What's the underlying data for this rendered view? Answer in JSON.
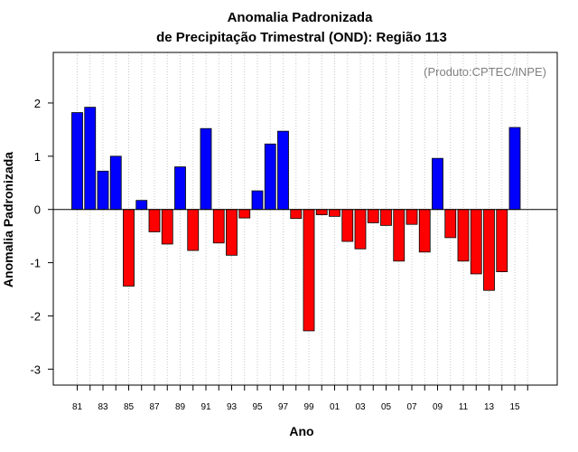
{
  "chart_data": {
    "type": "bar",
    "title_line1": "Anomalia Padronizada",
    "title_line2": "de Precipitação Trimestral (OND): Região 113",
    "xlabel": "Ano",
    "ylabel": "Anomalia Padronizada",
    "credit": "(Produto:CPTEC/INPE)",
    "ylim": [
      -3.3,
      2.95
    ],
    "yticks": [
      -3,
      -2,
      -1,
      0,
      1,
      2
    ],
    "grid": "vertical-dotted",
    "categories": [
      "81",
      "82",
      "83",
      "84",
      "85",
      "86",
      "87",
      "88",
      "89",
      "90",
      "91",
      "92",
      "93",
      "94",
      "95",
      "96",
      "97",
      "98",
      "99",
      "00",
      "01",
      "02",
      "03",
      "04",
      "05",
      "06",
      "07",
      "08",
      "09",
      "10",
      "11",
      "12",
      "13",
      "14",
      "15",
      "16"
    ],
    "xtick_labels": [
      "81",
      "",
      "83",
      "",
      "85",
      "",
      "87",
      "",
      "89",
      "",
      "91",
      "",
      "93",
      "",
      "95",
      "",
      "97",
      "",
      "99",
      "",
      "01",
      "",
      "03",
      "",
      "05",
      "",
      "07",
      "",
      "09",
      "",
      "11",
      "",
      "13",
      "",
      "15",
      ""
    ],
    "values": [
      1.82,
      1.92,
      0.72,
      1.0,
      -1.44,
      0.17,
      -0.42,
      -0.65,
      0.8,
      -0.77,
      1.52,
      -0.63,
      -0.86,
      -0.16,
      0.35,
      1.23,
      1.47,
      -0.17,
      -2.28,
      -0.1,
      -0.13,
      -0.6,
      -0.74,
      -0.25,
      -0.3,
      -0.97,
      -0.28,
      -0.8,
      0.96,
      -0.53,
      -0.97,
      -1.21,
      -1.52,
      -1.17,
      1.54,
      null
    ],
    "positive_color": "#0000ff",
    "negative_color": "#ff0000"
  }
}
